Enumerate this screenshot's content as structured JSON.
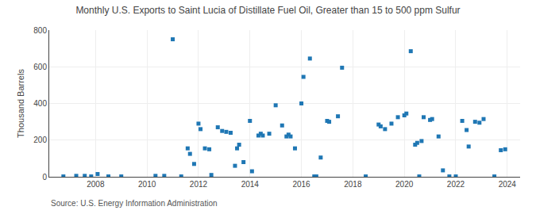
{
  "chart_data": {
    "type": "scatter",
    "title": "Monthly U.S. Exports to Saint Lucia of Distillate Fuel Oil, Greater than 15 to 500 ppm Sulfur",
    "ylabel": "Thousand Barrels",
    "annotations": [
      "Source: U.S. Energy Information Administration"
    ],
    "marker": "square",
    "grid": true,
    "xlim": [
      2006.2,
      2024.5
    ],
    "xticks": [
      2008,
      2010,
      2012,
      2014,
      2016,
      2018,
      2020,
      2022,
      2024
    ],
    "ylim": [
      0,
      800
    ],
    "yticks": [
      0,
      200,
      400,
      600,
      800
    ],
    "x": [
      2006.75,
      2007.25,
      2007.58,
      2007.83,
      2008.08,
      2008.5,
      2009.0,
      2010.33,
      2010.67,
      2011.0,
      2011.33,
      2011.58,
      2011.67,
      2011.83,
      2012.0,
      2012.08,
      2012.25,
      2012.42,
      2012.5,
      2012.75,
      2012.92,
      2013.08,
      2013.25,
      2013.42,
      2013.5,
      2013.58,
      2013.75,
      2014.0,
      2014.08,
      2014.33,
      2014.42,
      2014.5,
      2014.75,
      2015.0,
      2015.25,
      2015.42,
      2015.5,
      2015.58,
      2015.75,
      2016.0,
      2016.08,
      2016.33,
      2016.5,
      2016.58,
      2016.75,
      2017.0,
      2017.08,
      2017.42,
      2017.58,
      2018.5,
      2019.0,
      2019.08,
      2019.25,
      2019.5,
      2019.75,
      2020.0,
      2020.08,
      2020.25,
      2020.42,
      2020.5,
      2020.58,
      2020.67,
      2020.75,
      2021.0,
      2021.08,
      2021.33,
      2021.5,
      2021.75,
      2022.0,
      2022.25,
      2022.42,
      2022.5,
      2022.75,
      2022.92,
      2023.08,
      2023.5,
      2023.75,
      2023.92
    ],
    "values": [
      2,
      5,
      5,
      2,
      15,
      2,
      2,
      5,
      5,
      750,
      2,
      155,
      125,
      70,
      290,
      260,
      155,
      150,
      10,
      270,
      250,
      245,
      240,
      60,
      155,
      175,
      80,
      305,
      30,
      225,
      235,
      225,
      235,
      390,
      280,
      220,
      230,
      220,
      155,
      400,
      545,
      645,
      2,
      2,
      105,
      305,
      300,
      330,
      595,
      2,
      285,
      275,
      260,
      290,
      325,
      335,
      345,
      685,
      175,
      185,
      2,
      195,
      325,
      310,
      315,
      220,
      35,
      2,
      2,
      305,
      255,
      165,
      300,
      295,
      315,
      2,
      145,
      150
    ]
  }
}
